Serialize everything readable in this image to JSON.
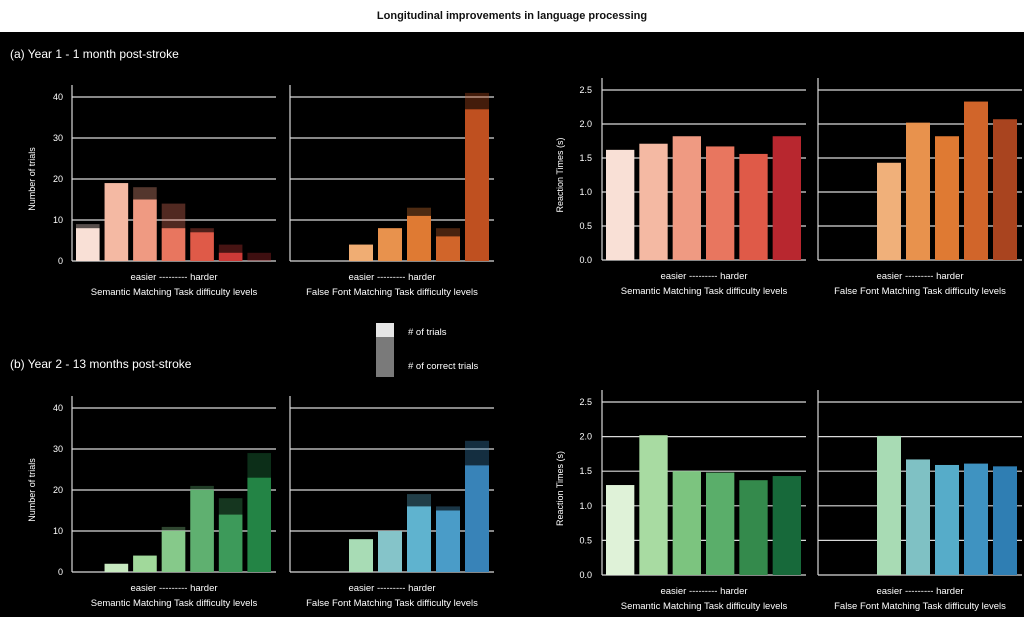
{
  "figure_title": "Longitudinal improvements in language processing",
  "panels": {
    "a": "(a)   Year 1 - 1 month post-stroke",
    "b": "(b)   Year 2 - 13 months post-stroke"
  },
  "legend": {
    "trials": "# of trials",
    "correct": "# of correct trials"
  },
  "colors": {
    "background": "#000000",
    "grid": "#d9d9d9",
    "title_band": "#ffffff"
  },
  "chart_data": [
    {
      "id": "y1-semantic-trials",
      "type": "bar",
      "ylabel": "Number of trials",
      "ylim": [
        0,
        40
      ],
      "yticks": [
        "0",
        "10",
        "20",
        "30",
        "40"
      ],
      "xlabel_top": "easier  ---------  harder",
      "xlabel": "Semantic Matching Task difficulty levels",
      "series": [
        {
          "name": "# of trials",
          "values": [
            9,
            19,
            18,
            14,
            8,
            4,
            2
          ]
        },
        {
          "name": "# of correct trials",
          "values": [
            8,
            19,
            15,
            8,
            7,
            2,
            0
          ]
        }
      ],
      "colors": [
        "#f9e0d6",
        "#f4b9a3",
        "#ef9a82",
        "#e8765f",
        "#df5a48",
        "#cc3a37",
        "#b22a2f"
      ]
    },
    {
      "id": "y1-falsefont-trials",
      "type": "bar",
      "ylim": [
        0,
        40
      ],
      "xlabel_top": "easier  ---------  harder",
      "xlabel": "False Font Matching Task difficulty levels",
      "series": [
        {
          "name": "# of trials",
          "values": [
            0,
            4,
            8,
            13,
            8,
            41
          ]
        },
        {
          "name": "# of correct trials",
          "values": [
            0,
            4,
            8,
            11,
            6,
            37
          ]
        }
      ],
      "colors": [
        "#f6c99b",
        "#f0ad73",
        "#e8924d",
        "#df7a33",
        "#d1652a",
        "#bf5020"
      ]
    },
    {
      "id": "y1-semantic-rt",
      "type": "bar",
      "ylabel": "Reaction Times (s)",
      "ylim": [
        0,
        2.5
      ],
      "yticks": [
        "0.0",
        "0.5",
        "1.0",
        "1.5",
        "2.0",
        "2.5"
      ],
      "xlabel_top": "easier  ---------  harder",
      "xlabel": "Semantic Matching Task difficulty levels",
      "values": [
        1.62,
        1.71,
        1.82,
        1.67,
        1.56,
        1.82
      ],
      "colors": [
        "#f9e0d6",
        "#f4b9a3",
        "#ef9a82",
        "#e8765f",
        "#df5a48",
        "#b8272f"
      ]
    },
    {
      "id": "y1-falsefont-rt",
      "type": "bar",
      "ylim": [
        0,
        2.5
      ],
      "xlabel_top": "easier  ---------  harder",
      "xlabel": "False Font Matching Task difficulty levels",
      "values": [
        0,
        1.43,
        2.02,
        1.82,
        2.33,
        2.07
      ],
      "colors": [
        "#f6c99b",
        "#f0b07a",
        "#e8924d",
        "#df7a33",
        "#d1652a",
        "#a9441f"
      ]
    },
    {
      "id": "y2-semantic-trials",
      "type": "bar",
      "ylabel": "Number of trials",
      "ylim": [
        0,
        40
      ],
      "yticks": [
        "0",
        "10",
        "20",
        "30",
        "40"
      ],
      "xlabel_top": "easier  ---------  harder",
      "xlabel": "Semantic Matching Task difficulty levels",
      "series": [
        {
          "name": "# of trials",
          "values": [
            0,
            2,
            4,
            11,
            21,
            18,
            29
          ]
        },
        {
          "name": "# of correct trials",
          "values": [
            0,
            2,
            4,
            10,
            20,
            14,
            23
          ]
        }
      ],
      "colors": [
        "#e5f5e0",
        "#c7e9c0",
        "#a1d99b",
        "#86c98a",
        "#5fb070",
        "#3d9a5a",
        "#238445"
      ]
    },
    {
      "id": "y2-falsefont-trials",
      "type": "bar",
      "ylim": [
        0,
        40
      ],
      "xlabel_top": "easier  ---------  harder",
      "xlabel": "False Font Matching Task difficulty levels",
      "series": [
        {
          "name": "# of trials",
          "values": [
            0,
            8,
            10,
            19,
            16,
            32
          ]
        },
        {
          "name": "# of correct trials",
          "values": [
            0,
            8,
            10,
            16,
            15,
            26
          ]
        }
      ],
      "colors": [
        "#c7e9c0",
        "#a8dcb5",
        "#85c4c9",
        "#5fb3cf",
        "#4a9cc8",
        "#3883b8"
      ]
    },
    {
      "id": "y2-semantic-rt",
      "type": "bar",
      "ylabel": "Reaction Times (s)",
      "ylim": [
        0,
        2.5
      ],
      "yticks": [
        "0.0",
        "0.5",
        "1.0",
        "1.5",
        "2.0",
        "2.5"
      ],
      "xlabel_top": "easier  ---------  harder",
      "xlabel": "Semantic Matching Task difficulty levels",
      "values": [
        1.3,
        2.02,
        1.5,
        1.48,
        1.37,
        1.43
      ],
      "colors": [
        "#dff2d8",
        "#a8dba2",
        "#7cc47f",
        "#5aae6a",
        "#348a4c",
        "#17693a"
      ]
    },
    {
      "id": "y2-falsefont-rt",
      "type": "bar",
      "ylim": [
        0,
        2.5
      ],
      "xlabel_top": "easier  ---------  harder",
      "xlabel": "False Font Matching Task difficulty levels",
      "values": [
        0,
        2.01,
        1.67,
        1.59,
        1.61,
        1.57
      ],
      "colors": [
        "#c7e9c0",
        "#a8dbb4",
        "#7fc1c4",
        "#56acc9",
        "#3f93c1",
        "#2f7eb3"
      ]
    }
  ]
}
